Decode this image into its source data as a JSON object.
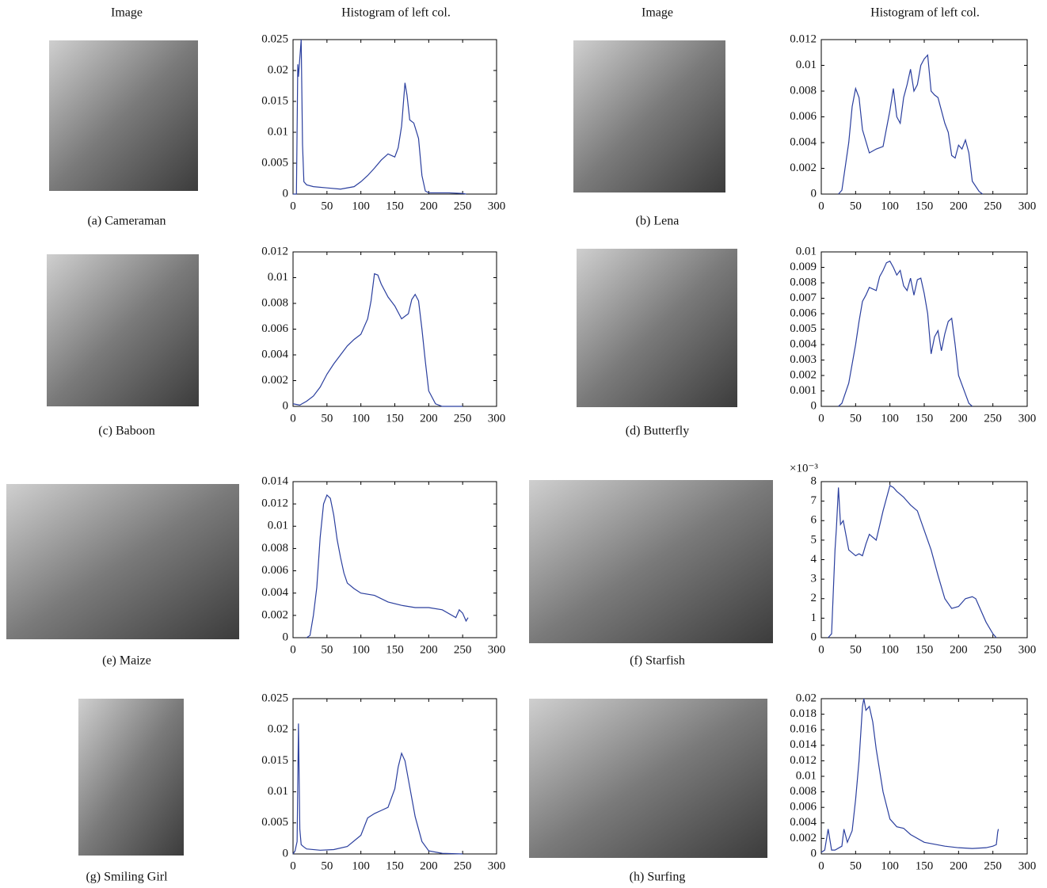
{
  "column_headers": [
    "Image",
    "Histogram of left col.",
    "Image",
    "Histogram of left col."
  ],
  "captions": [
    "(a) Cameraman",
    "(b) Lena",
    "(c) Baboon",
    "(d) Butterfly",
    "(e) Maize",
    "(f) Starfish",
    "(g) Smiling Girl",
    "(h) Surfing"
  ],
  "chart_data": [
    {
      "type": "line",
      "color": "#2b3f9e",
      "xlim": [
        0,
        300
      ],
      "ylim": [
        0,
        0.025
      ],
      "xticks": [
        0,
        50,
        100,
        150,
        200,
        250,
        300
      ],
      "yticks": [
        0,
        0.005,
        0.01,
        0.015,
        0.02,
        0.025
      ],
      "x": [
        0,
        5,
        7,
        8,
        10,
        12,
        14,
        16,
        20,
        30,
        50,
        70,
        90,
        100,
        110,
        120,
        130,
        140,
        150,
        155,
        160,
        165,
        168,
        172,
        178,
        185,
        190,
        195,
        200,
        210,
        230,
        250,
        255
      ],
      "values": [
        0,
        0,
        0.021,
        0.019,
        0.022,
        0.025,
        0.008,
        0.002,
        0.0015,
        0.0012,
        0.001,
        0.0008,
        0.0012,
        0.002,
        0.003,
        0.0042,
        0.0055,
        0.0065,
        0.006,
        0.0075,
        0.011,
        0.018,
        0.016,
        0.012,
        0.0115,
        0.009,
        0.003,
        0.0005,
        0.0002,
        0.0002,
        0.0002,
        0.0001,
        0
      ]
    },
    {
      "type": "line",
      "color": "#2b3f9e",
      "xlim": [
        0,
        300
      ],
      "ylim": [
        0,
        0.012
      ],
      "xticks": [
        0,
        50,
        100,
        150,
        200,
        250,
        300
      ],
      "yticks": [
        0,
        0.002,
        0.004,
        0.006,
        0.008,
        0.01,
        0.012
      ],
      "x": [
        25,
        30,
        40,
        45,
        50,
        55,
        60,
        70,
        80,
        90,
        100,
        105,
        110,
        115,
        120,
        125,
        130,
        135,
        140,
        145,
        150,
        155,
        160,
        165,
        170,
        180,
        185,
        190,
        195,
        200,
        205,
        210,
        215,
        220,
        230,
        235
      ],
      "values": [
        0,
        0.0003,
        0.004,
        0.0068,
        0.0082,
        0.0075,
        0.005,
        0.0032,
        0.0035,
        0.0037,
        0.0065,
        0.0082,
        0.006,
        0.0055,
        0.0075,
        0.0085,
        0.0097,
        0.008,
        0.0085,
        0.01,
        0.0105,
        0.0108,
        0.008,
        0.0077,
        0.0075,
        0.0055,
        0.0048,
        0.003,
        0.0028,
        0.0038,
        0.0035,
        0.0042,
        0.0032,
        0.001,
        0.0002,
        0
      ]
    },
    {
      "type": "line",
      "color": "#2b3f9e",
      "xlim": [
        0,
        300
      ],
      "ylim": [
        0,
        0.012
      ],
      "xticks": [
        0,
        50,
        100,
        150,
        200,
        250,
        300
      ],
      "yticks": [
        0,
        0.002,
        0.004,
        0.006,
        0.008,
        0.01,
        0.012
      ],
      "x": [
        0,
        10,
        20,
        30,
        40,
        50,
        60,
        70,
        80,
        90,
        100,
        110,
        115,
        120,
        125,
        130,
        140,
        150,
        160,
        170,
        175,
        180,
        185,
        190,
        195,
        200,
        210,
        220,
        230,
        250
      ],
      "values": [
        0.0002,
        0.0001,
        0.0004,
        0.0008,
        0.0015,
        0.0025,
        0.0033,
        0.004,
        0.0047,
        0.0052,
        0.0056,
        0.0068,
        0.0082,
        0.0103,
        0.0102,
        0.0095,
        0.0085,
        0.0078,
        0.0068,
        0.0072,
        0.0083,
        0.0087,
        0.0082,
        0.006,
        0.0035,
        0.0012,
        0.0002,
        0,
        0,
        0
      ]
    },
    {
      "type": "line",
      "color": "#2b3f9e",
      "xlim": [
        0,
        300
      ],
      "ylim": [
        0,
        0.01
      ],
      "xticks": [
        0,
        50,
        100,
        150,
        200,
        250,
        300
      ],
      "yticks": [
        0,
        0.001,
        0.002,
        0.003,
        0.004,
        0.005,
        0.006,
        0.007,
        0.008,
        0.009,
        0.01
      ],
      "x": [
        25,
        30,
        40,
        50,
        55,
        60,
        65,
        70,
        80,
        85,
        90,
        95,
        100,
        105,
        110,
        115,
        120,
        125,
        130,
        135,
        140,
        145,
        150,
        155,
        160,
        165,
        170,
        175,
        180,
        185,
        190,
        195,
        200,
        210,
        215,
        220
      ],
      "values": [
        0,
        0.0002,
        0.0015,
        0.004,
        0.0055,
        0.0068,
        0.0072,
        0.0077,
        0.0075,
        0.0084,
        0.0088,
        0.0093,
        0.0094,
        0.009,
        0.0085,
        0.0088,
        0.0078,
        0.0075,
        0.0083,
        0.0072,
        0.0082,
        0.0083,
        0.0073,
        0.006,
        0.0034,
        0.0045,
        0.0049,
        0.0036,
        0.0047,
        0.0055,
        0.0057,
        0.004,
        0.002,
        0.0008,
        0.0002,
        0
      ]
    },
    {
      "type": "line",
      "color": "#2b3f9e",
      "xlim": [
        0,
        300
      ],
      "ylim": [
        0,
        0.014
      ],
      "xticks": [
        0,
        50,
        100,
        150,
        200,
        250,
        300
      ],
      "yticks": [
        0,
        0.002,
        0.004,
        0.006,
        0.008,
        0.01,
        0.012,
        0.014
      ],
      "x": [
        20,
        25,
        30,
        35,
        40,
        45,
        50,
        55,
        60,
        65,
        70,
        75,
        80,
        90,
        100,
        120,
        140,
        160,
        180,
        200,
        220,
        240,
        245,
        250,
        255,
        258
      ],
      "values": [
        0,
        0.0002,
        0.002,
        0.0045,
        0.009,
        0.012,
        0.0128,
        0.0125,
        0.011,
        0.0088,
        0.0072,
        0.0058,
        0.0049,
        0.0044,
        0.004,
        0.0038,
        0.0032,
        0.0029,
        0.0027,
        0.0027,
        0.0025,
        0.0018,
        0.0025,
        0.0022,
        0.0015,
        0.0018
      ]
    },
    {
      "type": "line",
      "color": "#2b3f9e",
      "xlim": [
        0,
        300
      ],
      "ylim": [
        0,
        8
      ],
      "y_multiplier": "×10⁻³",
      "xticks": [
        0,
        50,
        100,
        150,
        200,
        250,
        300
      ],
      "yticks": [
        0,
        1,
        2,
        3,
        4,
        5,
        6,
        7,
        8
      ],
      "x": [
        10,
        15,
        20,
        22,
        25,
        28,
        32,
        40,
        50,
        55,
        60,
        65,
        70,
        80,
        90,
        100,
        105,
        110,
        120,
        130,
        140,
        150,
        160,
        170,
        180,
        190,
        200,
        210,
        220,
        225,
        230,
        240,
        250,
        255
      ],
      "values": [
        0,
        0.2,
        4.5,
        5.6,
        7.7,
        5.8,
        6,
        4.5,
        4.2,
        4.3,
        4.2,
        4.8,
        5.3,
        5,
        6.5,
        7.8,
        7.7,
        7.5,
        7.2,
        6.8,
        6.5,
        5.5,
        4.5,
        3.2,
        2,
        1.5,
        1.6,
        2,
        2.1,
        2,
        1.6,
        0.8,
        0.2,
        0
      ]
    },
    {
      "type": "line",
      "color": "#2b3f9e",
      "xlim": [
        0,
        300
      ],
      "ylim": [
        0,
        0.025
      ],
      "xticks": [
        0,
        50,
        100,
        150,
        200,
        250,
        300
      ],
      "yticks": [
        0,
        0.005,
        0.01,
        0.015,
        0.02,
        0.025
      ],
      "x": [
        0,
        3,
        6,
        8,
        10,
        12,
        15,
        20,
        40,
        60,
        80,
        100,
        110,
        120,
        130,
        140,
        150,
        155,
        160,
        165,
        170,
        180,
        190,
        200,
        220,
        250
      ],
      "values": [
        0,
        0.0005,
        0.002,
        0.021,
        0.004,
        0.0015,
        0.0012,
        0.0008,
        0.0006,
        0.0007,
        0.0012,
        0.003,
        0.0058,
        0.0065,
        0.007,
        0.0075,
        0.0105,
        0.014,
        0.0162,
        0.015,
        0.012,
        0.006,
        0.002,
        0.0005,
        0.0001,
        0
      ]
    },
    {
      "type": "line",
      "color": "#2b3f9e",
      "xlim": [
        0,
        300
      ],
      "ylim": [
        0,
        0.02
      ],
      "xticks": [
        0,
        50,
        100,
        150,
        200,
        250,
        300
      ],
      "yticks": [
        0,
        0.002,
        0.004,
        0.006,
        0.008,
        0.01,
        0.012,
        0.014,
        0.016,
        0.018,
        0.02
      ],
      "x": [
        0,
        5,
        10,
        15,
        20,
        30,
        33,
        38,
        45,
        50,
        55,
        60,
        62,
        65,
        70,
        75,
        80,
        90,
        100,
        110,
        120,
        130,
        150,
        180,
        200,
        220,
        240,
        250,
        255,
        257,
        258
      ],
      "values": [
        0.0002,
        0.0005,
        0.0032,
        0.0005,
        0.0005,
        0.001,
        0.0032,
        0.0015,
        0.003,
        0.007,
        0.012,
        0.019,
        0.02,
        0.0185,
        0.019,
        0.017,
        0.0135,
        0.008,
        0.0045,
        0.0035,
        0.0033,
        0.0025,
        0.0015,
        0.001,
        0.0008,
        0.0007,
        0.0008,
        0.001,
        0.0012,
        0.0028,
        0.0032
      ]
    }
  ]
}
